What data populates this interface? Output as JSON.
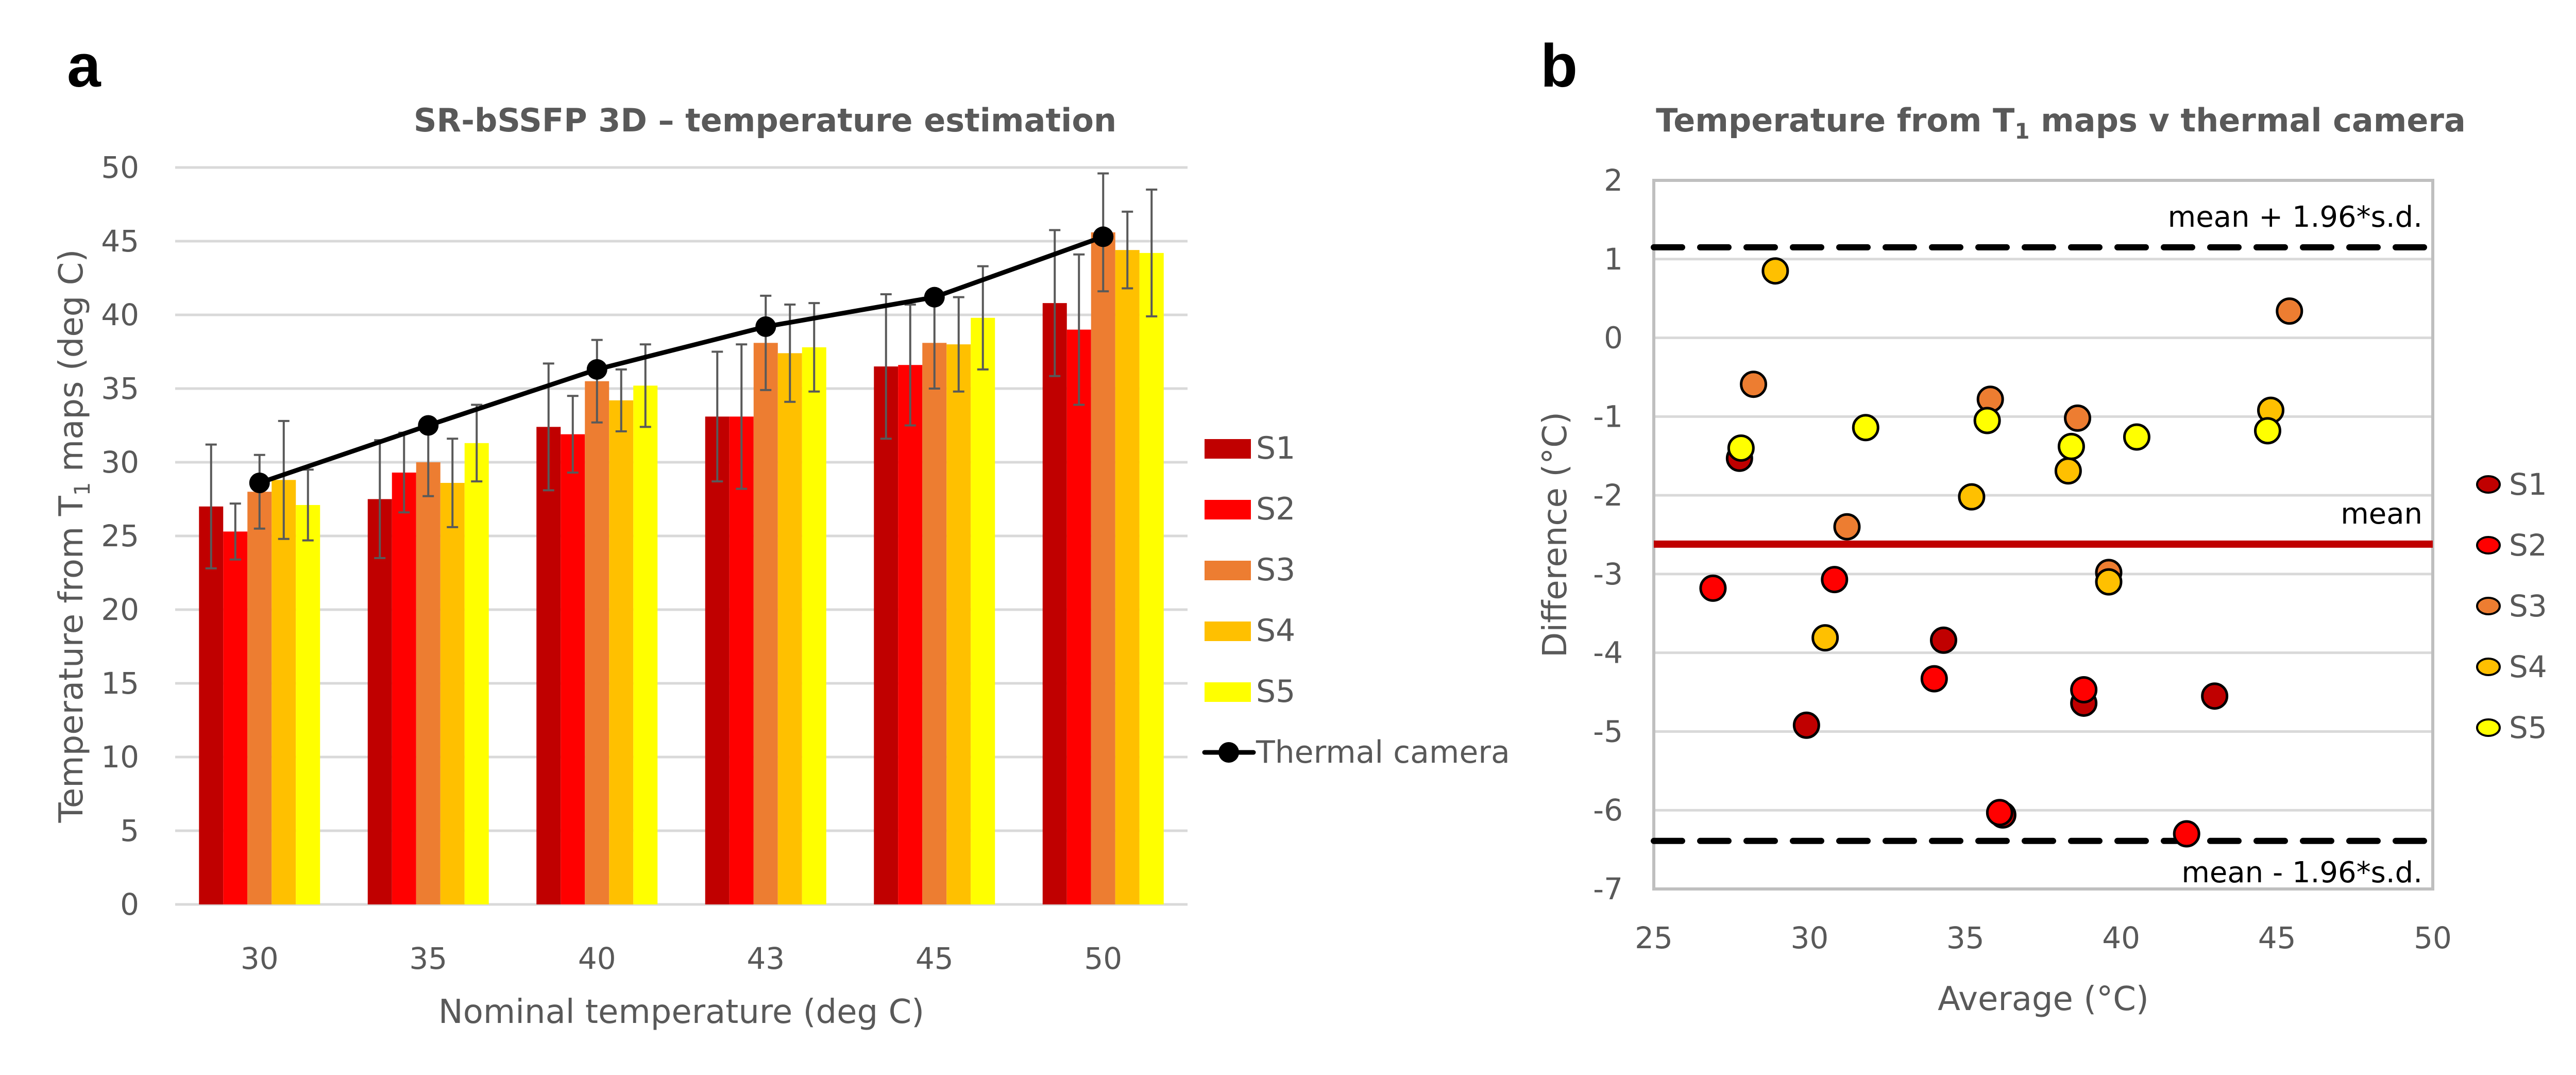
{
  "panels": {
    "a_letter": "a",
    "b_letter": "b"
  },
  "colors": {
    "S1": "#C00000",
    "S2": "#FF0000",
    "S3": "#ED7D31",
    "S4": "#FFC000",
    "S5": "#FFFF00",
    "thermal": "#000000",
    "mean_line": "#C00000",
    "grid": "#D9D9D9",
    "axis_text": "#595959",
    "error_bar": "#595959"
  },
  "chart_data": [
    {
      "id": "a",
      "type": "bar",
      "title": "SR-bSSFP 3D – temperature estimation",
      "xlabel": "Nominal temperature (deg C)",
      "ylabel_main": "Temperature from T",
      "ylabel_sub": "1",
      "ylabel_tail": " maps (deg C)",
      "ylim": [
        0,
        50
      ],
      "yticks": [
        0,
        5,
        10,
        15,
        20,
        25,
        30,
        35,
        40,
        45,
        50
      ],
      "grid": true,
      "legend_position": "right",
      "categories": [
        "30",
        "35",
        "40",
        "43",
        "45",
        "50"
      ],
      "series": [
        {
          "name": "S1",
          "values": [
            27.0,
            27.5,
            32.4,
            33.1,
            36.5,
            40.8
          ],
          "errors": [
            4.2,
            4.0,
            4.3,
            4.4,
            4.9,
            4.95
          ]
        },
        {
          "name": "S2",
          "values": [
            25.3,
            29.3,
            31.9,
            33.1,
            36.6,
            39.0
          ],
          "errors": [
            1.9,
            2.7,
            2.6,
            4.9,
            4.1,
            5.1
          ]
        },
        {
          "name": "S3",
          "values": [
            28.0,
            30.0,
            35.5,
            38.1,
            38.1,
            45.6
          ],
          "errors": [
            2.5,
            2.3,
            2.8,
            3.2,
            3.1,
            4.0
          ]
        },
        {
          "name": "S4",
          "values": [
            28.8,
            28.6,
            34.2,
            37.4,
            38.0,
            44.4
          ],
          "errors": [
            4.0,
            3.0,
            2.1,
            3.3,
            3.2,
            2.6
          ]
        },
        {
          "name": "S5",
          "values": [
            27.1,
            31.3,
            35.2,
            37.8,
            39.8,
            44.2
          ],
          "errors": [
            2.4,
            2.6,
            2.8,
            3.0,
            3.5,
            4.3
          ]
        }
      ],
      "line_series": {
        "name": "Thermal camera",
        "values": [
          28.6,
          32.5,
          36.3,
          39.2,
          41.2,
          45.3
        ]
      }
    },
    {
      "id": "b",
      "type": "scatter",
      "title_main": "Temperature from T",
      "title_sub": "1",
      "title_tail": " maps v thermal camera",
      "xlabel": "Average (°C)",
      "ylabel": "Difference (°C)",
      "xlim": [
        25,
        50
      ],
      "ylim": [
        -7,
        2
      ],
      "xticks": [
        25,
        30,
        35,
        40,
        45,
        50
      ],
      "yticks": [
        2,
        1,
        0,
        -1,
        -2,
        -3,
        -4,
        -5,
        -6,
        -7
      ],
      "grid": true,
      "legend_position": "right",
      "reference_lines": [
        {
          "name": "upper",
          "label": "mean + 1.96*s.d.",
          "y": 1.15,
          "style": "dashed"
        },
        {
          "name": "mean",
          "label": "mean",
          "y": -2.62,
          "style": "solid"
        },
        {
          "name": "lower",
          "label": "mean - 1.96*s.d.",
          "y": -6.39,
          "style": "dashed"
        }
      ],
      "series": [
        {
          "name": "S1",
          "points": [
            [
              27.75,
              -1.53
            ],
            [
              29.9,
              -4.92
            ],
            [
              34.3,
              -3.84
            ],
            [
              36.2,
              -6.06
            ],
            [
              38.8,
              -4.64
            ],
            [
              43.0,
              -4.55
            ]
          ]
        },
        {
          "name": "S2",
          "points": [
            [
              26.9,
              -3.18
            ],
            [
              30.8,
              -3.07
            ],
            [
              34.0,
              -4.33
            ],
            [
              36.1,
              -6.03
            ],
            [
              38.8,
              -4.47
            ],
            [
              42.1,
              -6.3
            ]
          ]
        },
        {
          "name": "S3",
          "points": [
            [
              28.2,
              -0.59
            ],
            [
              31.2,
              -2.4
            ],
            [
              35.8,
              -0.78
            ],
            [
              38.6,
              -1.02
            ],
            [
              39.6,
              -2.98
            ],
            [
              45.4,
              0.34
            ]
          ]
        },
        {
          "name": "S4",
          "points": [
            [
              28.9,
              0.85
            ],
            [
              30.5,
              -3.81
            ],
            [
              35.2,
              -2.02
            ],
            [
              38.3,
              -1.69
            ],
            [
              39.6,
              -3.1
            ],
            [
              44.8,
              -0.92
            ]
          ]
        },
        {
          "name": "S5",
          "points": [
            [
              27.8,
              -1.4
            ],
            [
              31.8,
              -1.14
            ],
            [
              35.7,
              -1.05
            ],
            [
              38.4,
              -1.38
            ],
            [
              40.5,
              -1.26
            ],
            [
              44.7,
              -1.18
            ]
          ]
        }
      ]
    }
  ]
}
